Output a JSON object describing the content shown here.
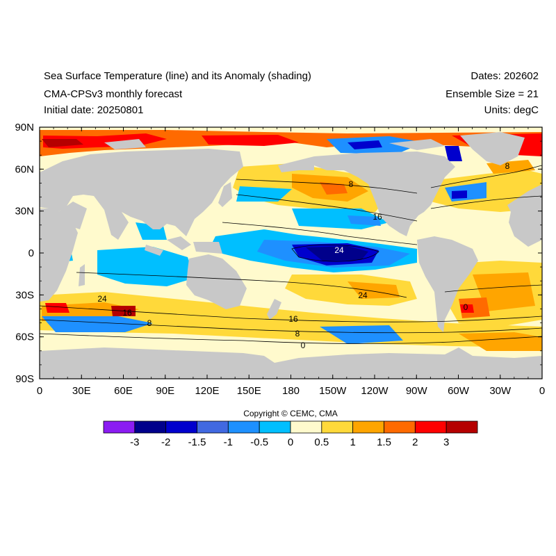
{
  "header": {
    "title_left_1": "Sea Surface Temperature (line) and its Anomaly (shading)",
    "title_left_2": "CMA-CPSv3 monthly forecast",
    "title_left_3": "Initial date: 20250801",
    "title_right_1": "Dates: 202602",
    "title_right_2": "Ensemble Size = 21",
    "title_right_3": "Units: degC"
  },
  "axes": {
    "lat_labels": [
      "90N",
      "60N",
      "30N",
      "0",
      "30S",
      "60S",
      "90S"
    ],
    "lon_labels": [
      "0",
      "30E",
      "60E",
      "90E",
      "120E",
      "150E",
      "180",
      "150W",
      "120W",
      "90W",
      "60W",
      "30W",
      "0"
    ]
  },
  "contour_labels": [
    "8",
    "16",
    "24",
    "24",
    "24",
    "16",
    "8",
    "16",
    "8",
    "0",
    "0",
    "8"
  ],
  "colorbar": {
    "colors": [
      "#8B1CF2",
      "#00008B",
      "#0000CD",
      "#4169E1",
      "#1E90FF",
      "#00BFFF",
      "#FFFACD",
      "#FFD93A",
      "#FFA500",
      "#FF6A00",
      "#FF0000",
      "#B50000"
    ],
    "labels": [
      "-3",
      "-2",
      "-1.5",
      "-1",
      "-0.5",
      "0",
      "0.5",
      "1",
      "1.5",
      "2",
      "3"
    ]
  },
  "copyright": "Copyright © CEMC, CMA",
  "colors": {
    "land": "#C8C8C8",
    "ocean_base": "#FFFACD"
  }
}
